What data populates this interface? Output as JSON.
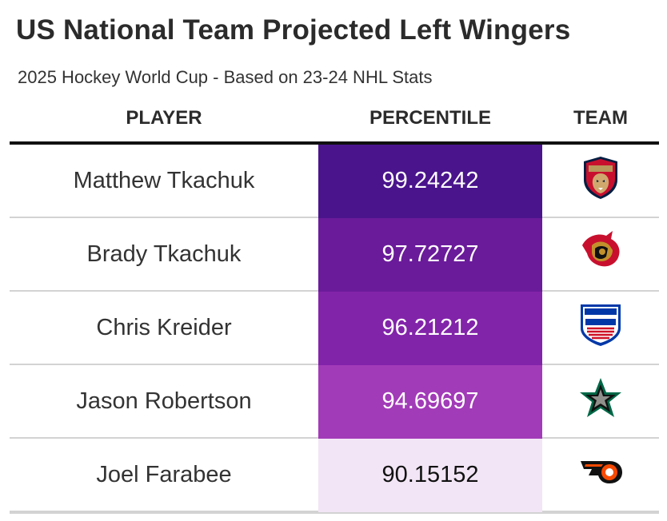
{
  "title": "US National Team Projected Left Wingers",
  "subtitle": "2025 Hockey World Cup - Based on 23-24 NHL Stats",
  "headers": {
    "player": "PLAYER",
    "percentile": "PERCENTILE",
    "team": "TEAM"
  },
  "rows": [
    {
      "player": "Matthew Tkachuk",
      "percentile": "99.24242",
      "team_icon": "florida-panthers-logo-icon",
      "color": "#4a148c",
      "text_color": "#ffffff"
    },
    {
      "player": "Brady Tkachuk",
      "percentile": "97.72727",
      "team_icon": "ottawa-senators-logo-icon",
      "color": "#6a1b9a",
      "text_color": "#ffffff"
    },
    {
      "player": "Chris Kreider",
      "percentile": "96.21212",
      "team_icon": "new-york-rangers-logo-icon",
      "color": "#8224aa",
      "text_color": "#ffffff"
    },
    {
      "player": "Jason Robertson",
      "percentile": "94.69697",
      "team_icon": "dallas-stars-logo-icon",
      "color": "#a23bb8",
      "text_color": "#ffffff"
    },
    {
      "player": "Joel Farabee",
      "percentile": "90.15152",
      "team_icon": "philadelphia-flyers-logo-icon",
      "color": "#f2e5f5",
      "text_color": "#111111"
    }
  ]
}
